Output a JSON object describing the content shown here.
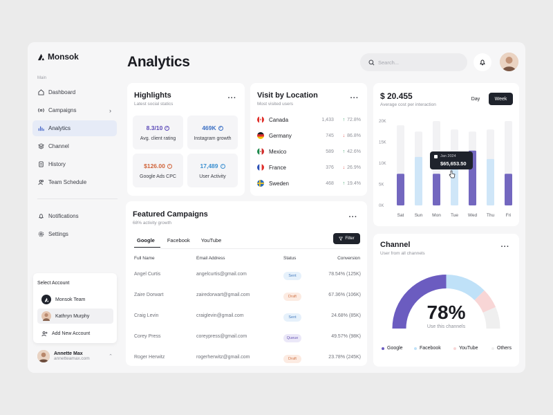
{
  "brand": {
    "name": "Monsok"
  },
  "sidebar": {
    "section_label": "Main",
    "items": [
      {
        "label": "Dashboard",
        "icon": "home-icon"
      },
      {
        "label": "Campaigns",
        "icon": "broadcast-icon"
      },
      {
        "label": "Analytics",
        "icon": "bar-chart-icon",
        "active": true
      },
      {
        "label": "Channel",
        "icon": "layers-icon"
      },
      {
        "label": "History",
        "icon": "document-icon"
      },
      {
        "label": "Team Schedule",
        "icon": "team-icon"
      }
    ],
    "bottom_items": [
      {
        "label": "Notifications",
        "icon": "bell-icon"
      },
      {
        "label": "Settings",
        "icon": "settings-icon"
      }
    ],
    "account_menu": {
      "title": "Select Account",
      "accounts": [
        "Monsok Team",
        "Kathryn Murphy"
      ],
      "add_label": "Add New Account"
    },
    "user": {
      "name": "Annette Max",
      "email": "annetteamax.com"
    }
  },
  "header": {
    "title": "Analytics",
    "search_placeholder": "Search..."
  },
  "highlights": {
    "title": "Highlights",
    "subtitle": "Latest social statics",
    "tiles": [
      {
        "value": "8.3/10",
        "label": "Avg. client rating",
        "color": "#5b49b8"
      },
      {
        "value": "469K",
        "label": "Instagram growth",
        "color": "#3a6fc4"
      },
      {
        "value": "$126.00",
        "label": "Google Ads CPC",
        "color": "#d0643a"
      },
      {
        "value": "17,489",
        "label": "User Activity",
        "color": "#3a8fd0"
      }
    ]
  },
  "location": {
    "title": "Visit by Location",
    "subtitle": "Most visited users",
    "rows": [
      {
        "country": "Canada",
        "count": "1,433",
        "pct": "72.8%",
        "dir": "up"
      },
      {
        "country": "Germany",
        "count": "745",
        "pct": "86.8%",
        "dir": "down"
      },
      {
        "country": "Mexico",
        "count": "589",
        "pct": "42.6%",
        "dir": "up"
      },
      {
        "country": "France",
        "count": "376",
        "pct": "26.9%",
        "dir": "down"
      },
      {
        "country": "Sweden",
        "count": "468",
        "pct": "19.4%",
        "dir": "up"
      }
    ]
  },
  "campaigns": {
    "title": "Featured Campaigns",
    "subtitle": "68% activity growth",
    "tabs": [
      "Google",
      "Facebook",
      "YouTube"
    ],
    "filter_label": "Filter",
    "columns": [
      "Full Name",
      "Email Address",
      "Status",
      "Conversion"
    ],
    "rows": [
      {
        "name": "Angel Curtis",
        "email": "angelcurtis@gmail.com",
        "status": "Sent",
        "conversion": "78.54% (125K)"
      },
      {
        "name": "Zaire Dorwart",
        "email": "zairedorwart@gmail.com",
        "status": "Draft",
        "conversion": "67.36% (106K)"
      },
      {
        "name": "Craig Levin",
        "email": "craiglevin@gmail.com",
        "status": "Sent",
        "conversion": "24.68% (85K)"
      },
      {
        "name": "Corey Press",
        "email": "coreypress@gmail.com",
        "status": "Queue",
        "conversion": "49.57% (98K)"
      },
      {
        "name": "Roger Herwitz",
        "email": "rogerherwitz@gmail.com",
        "status": "Draft",
        "conversion": "23.78% (245K)"
      }
    ]
  },
  "cost": {
    "value": "$ 20.455",
    "subtitle": "Average cost per interaction",
    "toggle": [
      "Day",
      "Week"
    ],
    "active_toggle": "Week",
    "tooltip": {
      "date": "Jan 2024",
      "value": "$65,653.50"
    }
  },
  "chart_data": {
    "type": "bar",
    "categories": [
      "Sat",
      "Sun",
      "Mon",
      "Tue",
      "Wed",
      "Thu",
      "Fri"
    ],
    "y_ticks": [
      "20K",
      "15K",
      "10K",
      "5K",
      "0K"
    ],
    "ylim": [
      0,
      20000
    ],
    "series": [
      {
        "values": [
          7500,
          11500,
          7500,
          10000,
          13000,
          11000,
          7500
        ],
        "color": "#7367bf"
      },
      {
        "values": [
          19000,
          17500,
          21000,
          18000,
          17500,
          18000,
          20000
        ],
        "color": "#f2f2f4"
      }
    ],
    "highlight_colors": [
      "#7367bf",
      "#cfe6f8",
      "#7367bf",
      "#cfe6f8",
      "#7367bf",
      "#cfe6f8",
      "#7367bf"
    ]
  },
  "channel": {
    "title": "Channel",
    "subtitle": "User from all channels",
    "percent": "78%",
    "caption": "Use this channels",
    "legend": [
      {
        "label": "Google",
        "color": "#6b5cc0"
      },
      {
        "label": "Facebook",
        "color": "#bfe1f8"
      },
      {
        "label": "YouTube",
        "color": "#f8d6d6"
      },
      {
        "label": "Others",
        "color": "#efefef"
      }
    ],
    "shares": [
      0.5,
      0.25,
      0.12,
      0.13
    ]
  }
}
